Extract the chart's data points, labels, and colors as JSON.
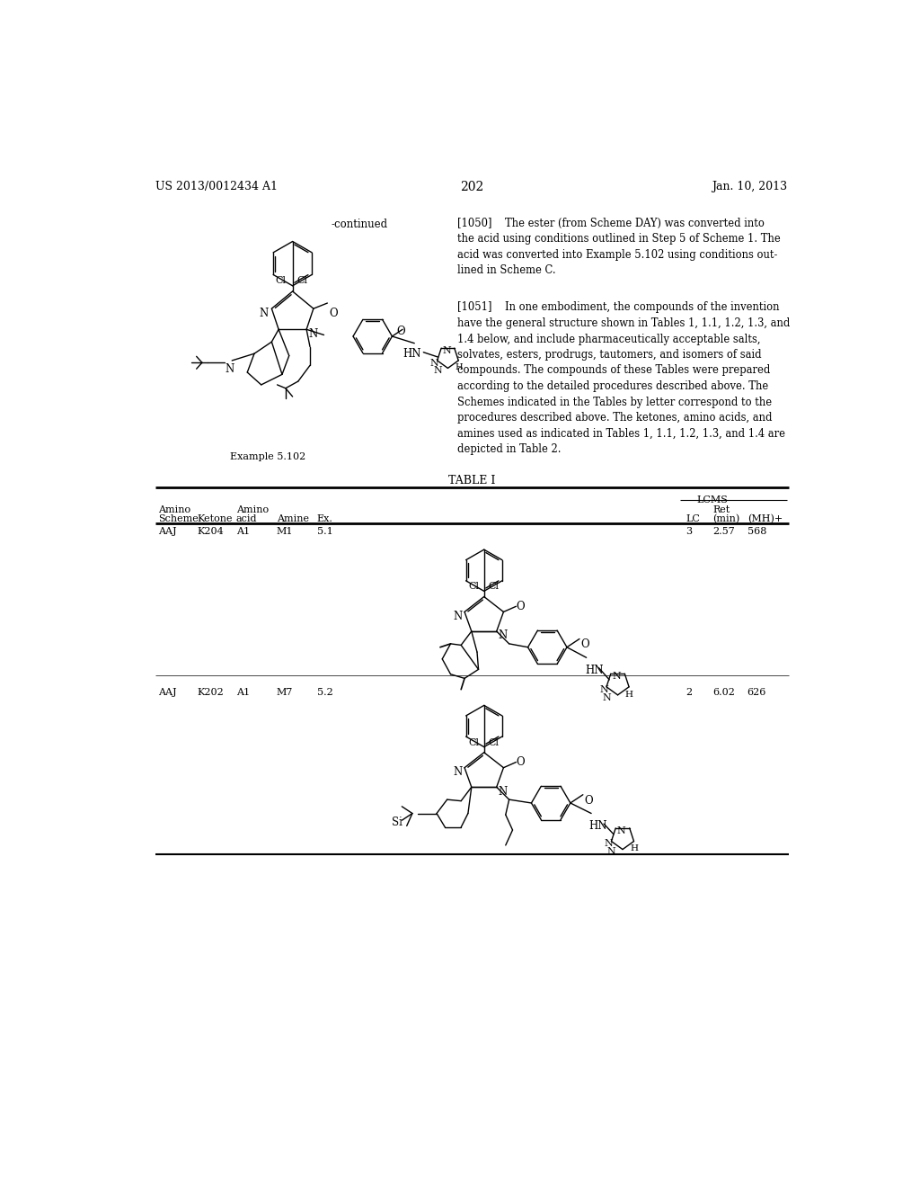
{
  "background_color": "#ffffff",
  "header_left": "US 2013/0012434 A1",
  "header_right": "Jan. 10, 2013",
  "page_number": "202",
  "continued_label": "-continued",
  "example_label": "Example 5.102",
  "para_1050": "[1050]    The ester (from Scheme DAY) was converted into\nthe acid using conditions outlined in Step 5 of Scheme 1. The\nacid was converted into Example 5.102 using conditions out-\nlined in Scheme C.",
  "para_1051": "[1051]    In one embodiment, the compounds of the invention\nhave the general structure shown in Tables 1, 1.1, 1.2, 1.3, and\n1.4 below, and include pharmaceutically acceptable salts,\nsolvates, esters, prodrugs, tautomers, and isomers of said\ncompounds. The compounds of these Tables were prepared\naccording to the detailed procedures described above. The\nSchemes indicated in the Tables by letter correspond to the\nprocedures described above. The ketones, amino acids, and\namines used as indicated in Tables 1, 1.1, 1.2, 1.3, and 1.4 are\ndepicted in Table 2.",
  "table_title": "TABLE I"
}
